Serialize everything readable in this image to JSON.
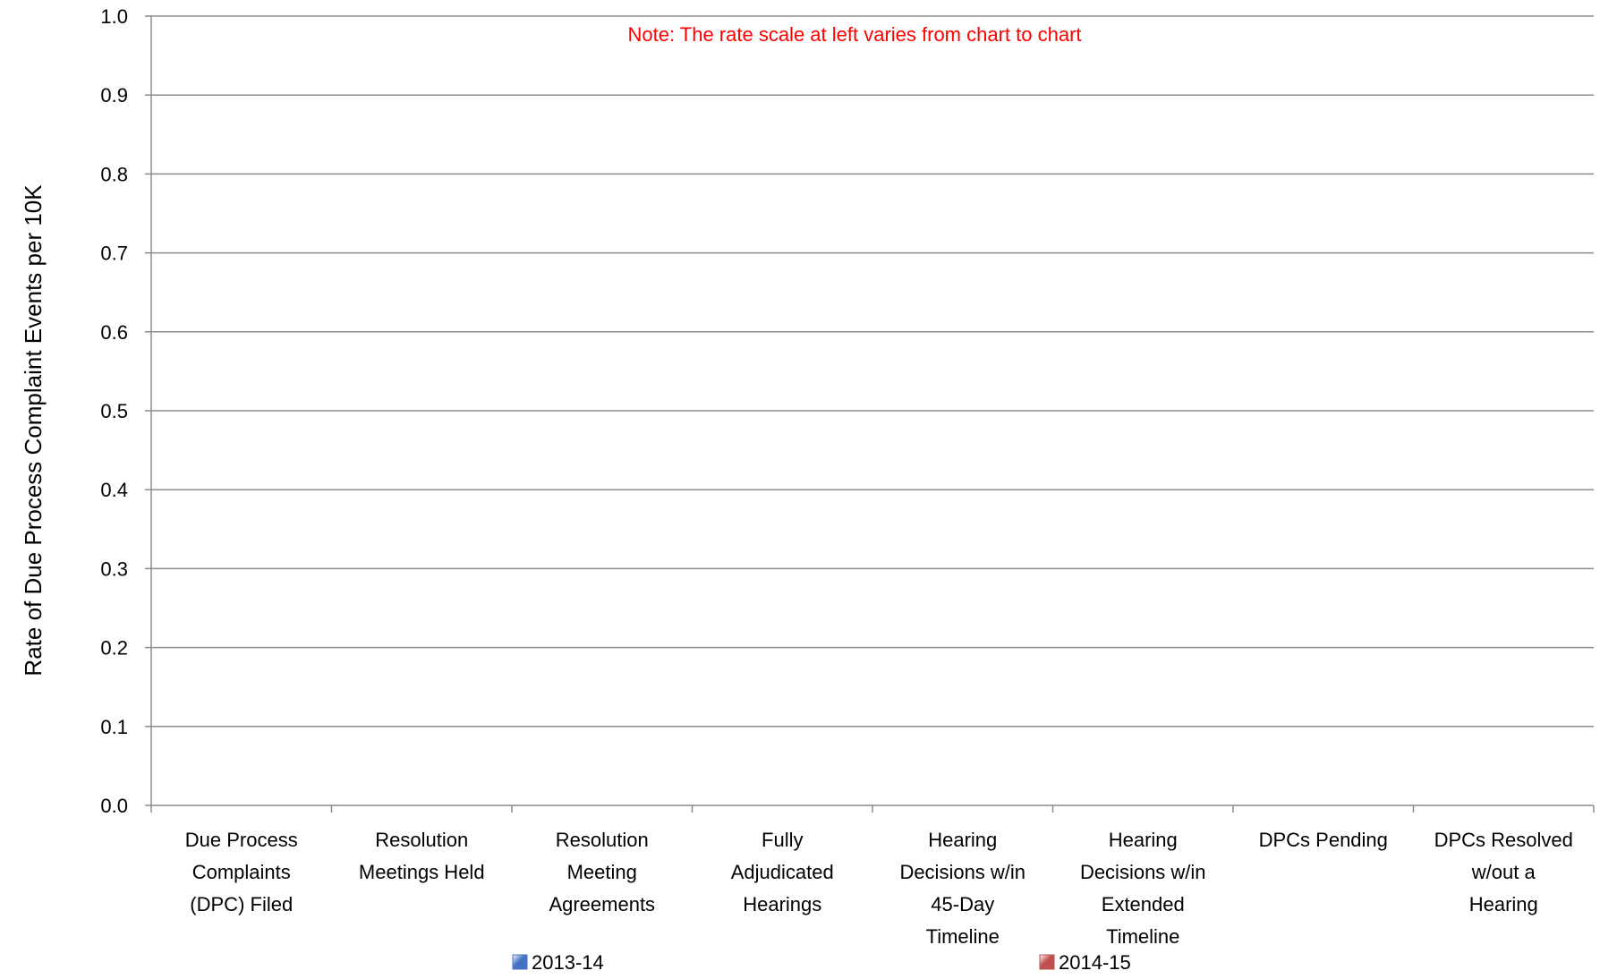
{
  "chart_data": {
    "type": "bar",
    "ylabel": "Rate of Due Process Complaint Events per 10K",
    "xlabel": "",
    "ylim": [
      0,
      1.0
    ],
    "yticks": [
      "0.0",
      "0.1",
      "0.2",
      "0.3",
      "0.4",
      "0.5",
      "0.6",
      "0.7",
      "0.8",
      "0.9",
      "1.0"
    ],
    "grid": true,
    "legend_position": "bottom",
    "categories": [
      [
        "Due Process",
        "Complaints",
        "(DPC) Filed"
      ],
      [
        "Resolution",
        "Meetings Held"
      ],
      [
        "Resolution",
        "Meeting",
        "Agreements"
      ],
      [
        "Fully",
        "Adjudicated",
        "Hearings"
      ],
      [
        "Hearing",
        "Decisions w/in",
        "45-Day",
        "Timeline"
      ],
      [
        "Hearing",
        "Decisions w/in",
        "Extended",
        "Timeline"
      ],
      [
        "DPCs Pending"
      ],
      [
        "DPCs Resolved",
        "w/out a",
        "Hearing"
      ]
    ],
    "series": [
      {
        "name": "2013-14",
        "color": "#4472c4",
        "values": [
          null,
          null,
          null,
          null,
          null,
          null,
          null,
          null
        ]
      },
      {
        "name": "2014-15",
        "color": "#c0504d",
        "values": [
          null,
          null,
          null,
          null,
          null,
          null,
          null,
          null
        ]
      }
    ],
    "annotation": {
      "text": "Note:  The rate scale at left varies from chart to chart",
      "color": "#ff0000"
    }
  }
}
